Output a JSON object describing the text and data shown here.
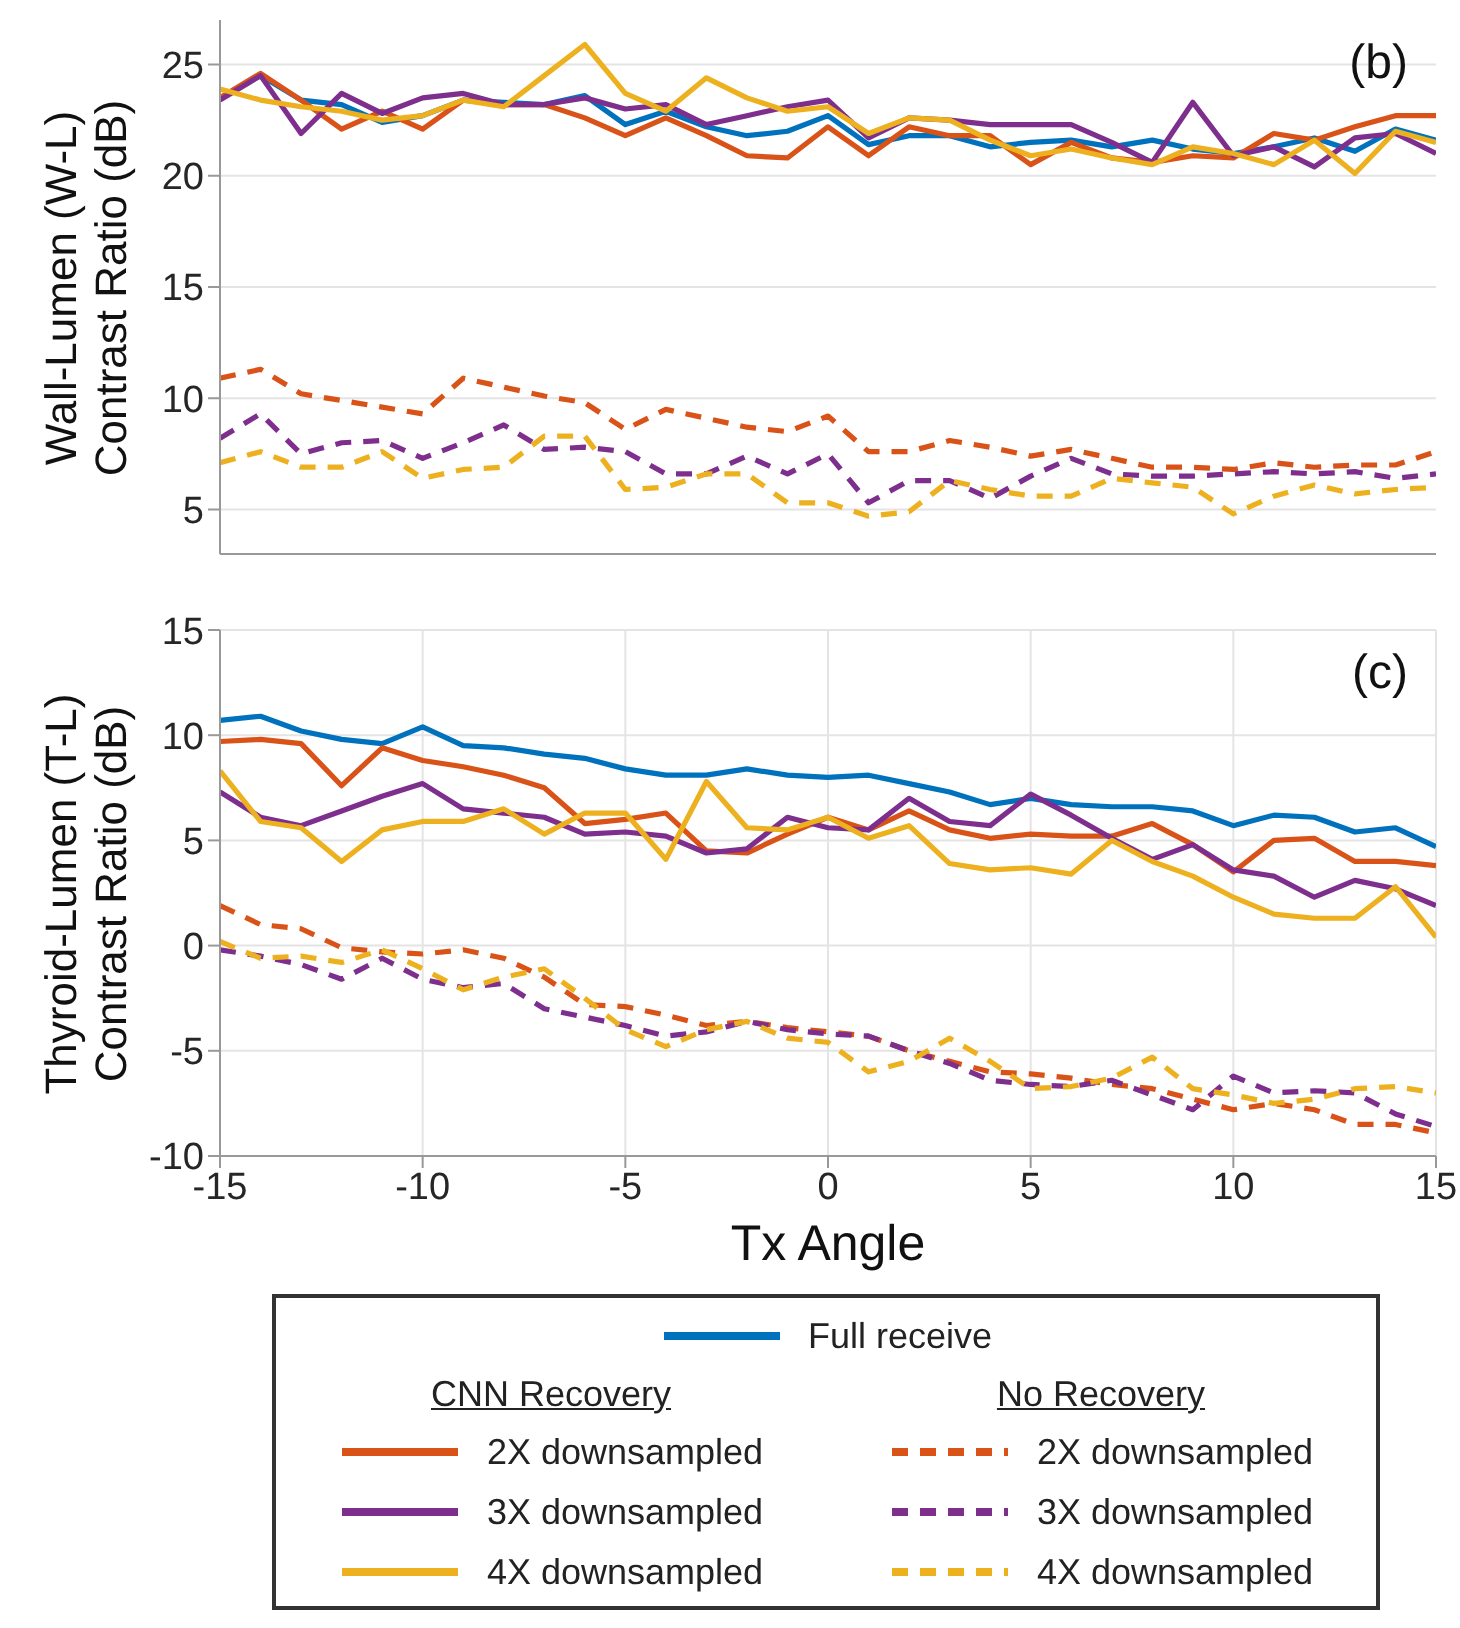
{
  "chart_data": [
    {
      "type": "line",
      "ylabel": "Wall-Lumen (W-L) Contrast Ratio (dB)",
      "annotations": [
        "(b)"
      ],
      "x": [
        -15,
        -14,
        -13,
        -12,
        -11,
        -10,
        -9,
        -8,
        -7,
        -6,
        -5,
        -4,
        -3,
        -2,
        -1,
        0,
        1,
        2,
        3,
        4,
        5,
        6,
        7,
        8,
        9,
        10,
        11,
        12,
        13,
        14,
        15
      ],
      "xlim": [
        -15,
        15
      ],
      "xticks": [
        -15,
        -10,
        -5,
        0,
        5,
        10,
        15
      ],
      "ylim": [
        3,
        27
      ],
      "yticks": [
        5,
        10,
        15,
        20,
        25
      ],
      "grid": true,
      "tick_labels": "y",
      "series": [
        {
          "color": "#0072bd",
          "values": [
            23.5,
            24.5,
            23.4,
            23.2,
            22.4,
            22.7,
            23.4,
            23.3,
            23.2,
            23.6,
            22.3,
            22.9,
            22.2,
            21.8,
            22.0,
            22.7,
            21.4,
            21.8,
            21.8,
            21.3,
            21.5,
            21.6,
            21.3,
            21.6,
            21.2,
            21.0,
            21.3,
            21.7,
            21.1,
            22.1,
            21.6
          ]
        },
        {
          "color": "#d95319",
          "values": [
            23.5,
            24.6,
            23.4,
            22.1,
            22.9,
            22.1,
            23.4,
            23.2,
            23.2,
            22.6,
            21.8,
            22.6,
            21.8,
            20.9,
            20.8,
            22.2,
            20.9,
            22.2,
            21.8,
            21.8,
            20.5,
            21.5,
            20.8,
            20.6,
            20.9,
            20.8,
            21.9,
            21.6,
            22.2,
            22.7,
            22.7
          ]
        },
        {
          "color": "#7e2f8e",
          "values": [
            23.4,
            24.5,
            21.9,
            23.7,
            22.8,
            23.5,
            23.7,
            23.2,
            23.2,
            23.5,
            23.0,
            23.2,
            22.3,
            22.7,
            23.1,
            23.4,
            21.7,
            22.6,
            22.5,
            22.3,
            22.3,
            22.3,
            21.5,
            20.6,
            23.3,
            20.9,
            21.3,
            20.4,
            21.7,
            21.9,
            21.0
          ]
        },
        {
          "color": "#edb120",
          "values": [
            23.9,
            23.4,
            23.1,
            22.9,
            22.5,
            22.7,
            23.4,
            23.1,
            24.5,
            25.9,
            23.7,
            22.9,
            24.4,
            23.5,
            22.9,
            23.1,
            21.9,
            22.6,
            22.5,
            21.6,
            20.9,
            21.2,
            20.8,
            20.5,
            21.3,
            21.0,
            20.5,
            21.6,
            20.1,
            22.0,
            21.5
          ]
        },
        {
          "color": "#d95319",
          "line_style": "dashed",
          "values": [
            10.9,
            11.3,
            10.2,
            9.9,
            9.6,
            9.3,
            10.9,
            10.5,
            10.1,
            9.8,
            8.6,
            9.5,
            9.1,
            8.7,
            8.5,
            9.2,
            7.6,
            7.6,
            8.1,
            7.8,
            7.4,
            7.7,
            7.3,
            6.9,
            6.9,
            6.8,
            7.1,
            6.9,
            7.0,
            7.0,
            7.6
          ]
        },
        {
          "color": "#7e2f8e",
          "line_style": "dashed",
          "values": [
            8.2,
            9.3,
            7.5,
            8.0,
            8.1,
            7.3,
            8.0,
            8.8,
            7.7,
            7.8,
            7.6,
            6.6,
            6.6,
            7.4,
            6.6,
            7.5,
            5.3,
            6.3,
            6.3,
            5.5,
            6.5,
            7.3,
            6.6,
            6.5,
            6.5,
            6.6,
            6.7,
            6.6,
            6.7,
            6.4,
            6.6
          ]
        },
        {
          "color": "#edb120",
          "line_style": "dashed",
          "values": [
            7.1,
            7.6,
            6.9,
            6.9,
            7.6,
            6.4,
            6.8,
            6.9,
            8.3,
            8.3,
            5.9,
            6.0,
            6.6,
            6.6,
            5.3,
            5.3,
            4.7,
            4.9,
            6.3,
            5.9,
            5.6,
            5.6,
            6.4,
            6.2,
            6.0,
            4.8,
            5.6,
            6.1,
            5.7,
            5.9,
            6.0
          ]
        }
      ]
    },
    {
      "type": "line",
      "xlabel": "Tx Angle",
      "ylabel": "Thyroid-Lumen (T-L) Contrast Ratio (dB)",
      "annotations": [
        "(c)",
        "CNN Recovery",
        "No Recovery"
      ],
      "x": [
        -15,
        -14,
        -13,
        -12,
        -11,
        -10,
        -9,
        -8,
        -7,
        -6,
        -5,
        -4,
        -3,
        -2,
        -1,
        0,
        1,
        2,
        3,
        4,
        5,
        6,
        7,
        8,
        9,
        10,
        11,
        12,
        13,
        14,
        15
      ],
      "xlim": [
        -15,
        15
      ],
      "xticks": [
        -15,
        -10,
        -5,
        0,
        5,
        10,
        15
      ],
      "ylim": [
        -10,
        15
      ],
      "yticks": [
        -10,
        -5,
        0,
        5,
        10,
        15
      ],
      "grid": true,
      "legend": "bottom",
      "series": [
        {
          "name": "Full receive",
          "color": "#0072bd",
          "values": [
            10.7,
            10.9,
            10.2,
            9.8,
            9.6,
            10.4,
            9.5,
            9.4,
            9.1,
            8.9,
            8.4,
            8.1,
            8.1,
            8.4,
            8.1,
            8.0,
            8.1,
            7.7,
            7.3,
            6.7,
            7.0,
            6.7,
            6.6,
            6.6,
            6.4,
            5.7,
            6.2,
            6.1,
            5.4,
            5.6,
            4.7
          ]
        },
        {
          "name": "2X downsampled",
          "color": "#d95319",
          "values": [
            9.7,
            9.8,
            9.6,
            7.6,
            9.4,
            8.8,
            8.5,
            8.1,
            7.5,
            5.8,
            6.0,
            6.3,
            4.5,
            4.4,
            5.3,
            6.1,
            5.5,
            6.4,
            5.5,
            5.1,
            5.3,
            5.2,
            5.2,
            5.8,
            4.8,
            3.5,
            5.0,
            5.1,
            4.0,
            4.0,
            3.8
          ]
        },
        {
          "name": "3X downsampled",
          "color": "#7e2f8e",
          "values": [
            7.3,
            6.1,
            5.7,
            6.4,
            7.1,
            7.7,
            6.5,
            6.3,
            6.1,
            5.3,
            5.4,
            5.2,
            4.4,
            4.6,
            6.1,
            5.6,
            5.5,
            7.0,
            5.9,
            5.7,
            7.2,
            6.2,
            5.1,
            4.1,
            4.8,
            3.6,
            3.3,
            2.3,
            3.1,
            2.7,
            1.9
          ]
        },
        {
          "name": "4X downsampled",
          "color": "#edb120",
          "values": [
            8.3,
            5.9,
            5.6,
            4.0,
            5.5,
            5.9,
            5.9,
            6.5,
            5.3,
            6.3,
            6.3,
            4.1,
            7.8,
            5.6,
            5.5,
            6.1,
            5.1,
            5.7,
            3.9,
            3.6,
            3.7,
            3.4,
            5.0,
            4.0,
            3.3,
            2.3,
            1.5,
            1.3,
            1.3,
            2.8,
            0.4
          ]
        },
        {
          "name": "2X downsampled",
          "color": "#d95319",
          "line_style": "dashed",
          "values": [
            1.9,
            1.0,
            0.8,
            -0.1,
            -0.3,
            -0.4,
            -0.2,
            -0.6,
            -1.5,
            -2.8,
            -2.9,
            -3.3,
            -3.8,
            -3.6,
            -3.9,
            -4.1,
            -4.3,
            -5.0,
            -5.5,
            -6.0,
            -6.1,
            -6.3,
            -6.6,
            -6.8,
            -7.3,
            -7.8,
            -7.5,
            -7.8,
            -8.5,
            -8.5,
            -8.9
          ]
        },
        {
          "name": "3X downsampled",
          "color": "#7e2f8e",
          "line_style": "dashed",
          "values": [
            -0.2,
            -0.5,
            -0.9,
            -1.6,
            -0.6,
            -1.6,
            -2.0,
            -1.8,
            -3.0,
            -3.4,
            -3.8,
            -4.3,
            -4.1,
            -3.6,
            -4.0,
            -4.2,
            -4.3,
            -5.0,
            -5.6,
            -6.4,
            -6.6,
            -6.7,
            -6.4,
            -7.1,
            -7.8,
            -6.2,
            -7.0,
            -6.9,
            -7.0,
            -8.0,
            -8.6
          ]
        },
        {
          "name": "4X downsampled",
          "color": "#edb120",
          "line_style": "dashed",
          "values": [
            0.2,
            -0.6,
            -0.5,
            -0.8,
            -0.2,
            -1.1,
            -2.1,
            -1.5,
            -1.1,
            -2.5,
            -4.0,
            -4.8,
            -4.0,
            -3.6,
            -4.4,
            -4.6,
            -6.0,
            -5.5,
            -4.4,
            -5.5,
            -6.8,
            -6.7,
            -6.3,
            -5.3,
            -6.8,
            -7.1,
            -7.5,
            -7.3,
            -6.8,
            -6.7,
            -7.0
          ]
        }
      ]
    }
  ]
}
